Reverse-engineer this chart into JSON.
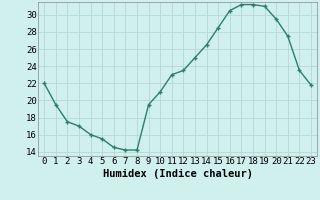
{
  "x": [
    0,
    1,
    2,
    3,
    4,
    5,
    6,
    7,
    8,
    9,
    10,
    11,
    12,
    13,
    14,
    15,
    16,
    17,
    18,
    19,
    20,
    21,
    22,
    23
  ],
  "y": [
    22,
    19.5,
    17.5,
    17,
    16,
    15.5,
    14.5,
    14.2,
    14.2,
    19.5,
    21,
    23,
    23.5,
    25,
    26.5,
    28.5,
    30.5,
    31.2,
    31.2,
    31.0,
    29.5,
    27.5,
    23.5,
    21.8
  ],
  "line_color": "#2e7d6e",
  "marker": "+",
  "background_color": "#cff0ec",
  "grid_color": "#b8d8d4",
  "xlabel": "Humidex (Indice chaleur)",
  "xlim": [
    -0.5,
    23.5
  ],
  "ylim": [
    13.5,
    31.5
  ],
  "yticks": [
    14,
    16,
    18,
    20,
    22,
    24,
    26,
    28,
    30
  ],
  "xticks": [
    0,
    1,
    2,
    3,
    4,
    5,
    6,
    7,
    8,
    9,
    10,
    11,
    12,
    13,
    14,
    15,
    16,
    17,
    18,
    19,
    20,
    21,
    22,
    23
  ],
  "xlabel_fontsize": 7.5,
  "tick_fontsize": 6.5
}
